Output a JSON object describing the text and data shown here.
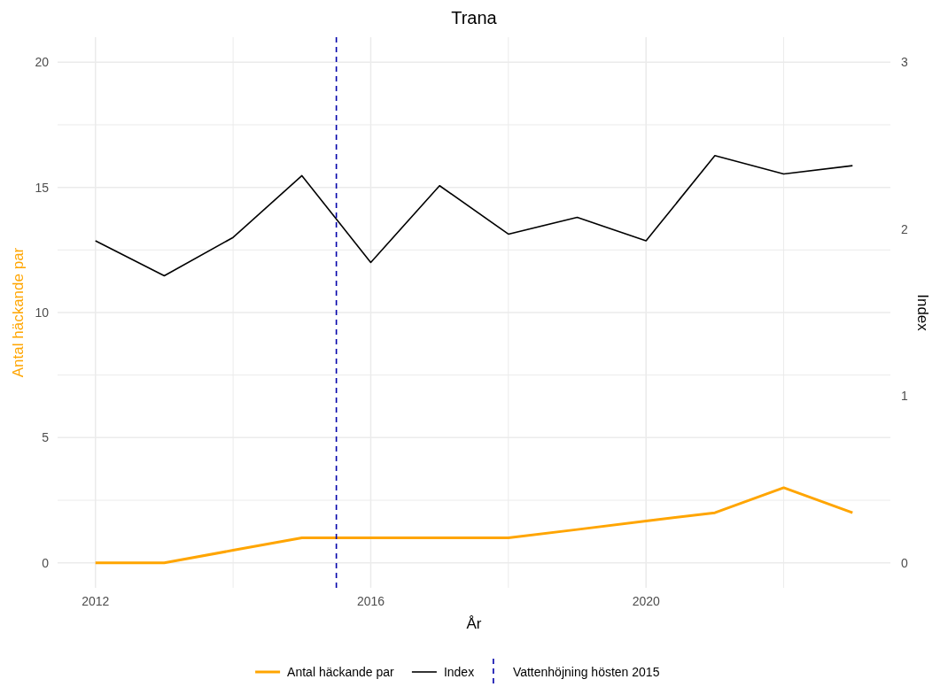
{
  "chart_data": {
    "type": "line",
    "title": "Trana",
    "xlabel": "År",
    "ylabel": "Antal häckande par",
    "y2label": "Index",
    "x": [
      2012,
      2013,
      2014,
      2015,
      2016,
      2017,
      2018,
      2019,
      2020,
      2021,
      2022,
      2023
    ],
    "series": [
      {
        "name": "Antal häckande par",
        "color": "#ffa500",
        "values": [
          0,
          0,
          0.5,
          1,
          1,
          1,
          1,
          1.33,
          1.67,
          2,
          3,
          2
        ]
      },
      {
        "name": "Index",
        "color": "#000000",
        "axis": "y2",
        "values": [
          1.93,
          1.72,
          1.95,
          2.32,
          1.8,
          2.26,
          1.97,
          2.07,
          1.93,
          2.44,
          2.33,
          2.38
        ]
      }
    ],
    "xlim": [
      2011.45,
      2023.55
    ],
    "xticks": [
      2012,
      {
        "value": 2014,
        "label": null
      },
      2016,
      {
        "value": 2018,
        "label": null
      },
      2020,
      {
        "value": 2022,
        "label": null
      }
    ],
    "ylim": [
      -1,
      21
    ],
    "yticks": [
      0,
      {
        "value": 2.5,
        "label": null
      },
      5,
      {
        "value": 7.5,
        "label": null
      },
      10,
      {
        "value": 12.5,
        "label": null
      },
      15,
      {
        "value": 17.5,
        "label": null
      },
      20
    ],
    "y2lim": [
      -0.15,
      3.15
    ],
    "y2ticks": [
      0,
      1,
      2,
      3
    ],
    "ref_lines": [
      {
        "axis": "x",
        "value": 2015.5,
        "label": "Vattenhöjning hösten 2015",
        "color": "#0000aa",
        "line_style": "dashed"
      }
    ],
    "grid": true,
    "legend": "bottom",
    "line_style": "solid",
    "marker": "none"
  }
}
